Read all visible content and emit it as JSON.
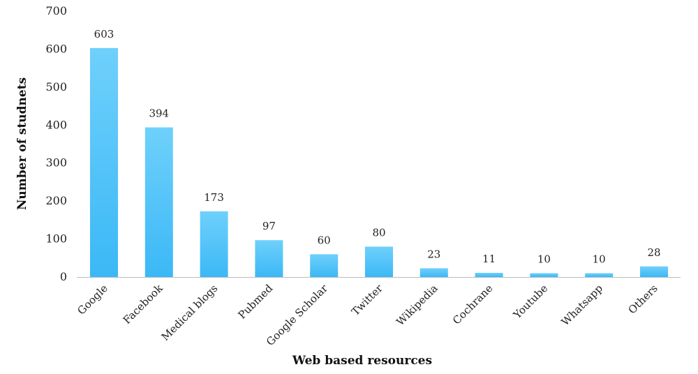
{
  "chart_data": {
    "type": "bar",
    "title": "",
    "xlabel": "Web based resources",
    "ylabel": "Number of studnets",
    "categories": [
      "Google",
      "Facebook",
      "Medical blogs",
      "Pubmed",
      "Google Scholar",
      "Twitter",
      "Wikipedia",
      "Cochrane",
      "Youtube",
      "Whatsapp",
      "Others"
    ],
    "values": [
      603,
      394,
      173,
      97,
      60,
      80,
      23,
      11,
      10,
      10,
      28
    ],
    "ylim": [
      0,
      700
    ],
    "yticks": [
      0,
      100,
      200,
      300,
      400,
      500,
      600,
      700
    ],
    "grid": false,
    "legend": "none",
    "colors": {
      "bar_top": "#6fd0fb",
      "bar_bottom": "#3bb8f6",
      "axis": "#bdbdbd"
    }
  }
}
